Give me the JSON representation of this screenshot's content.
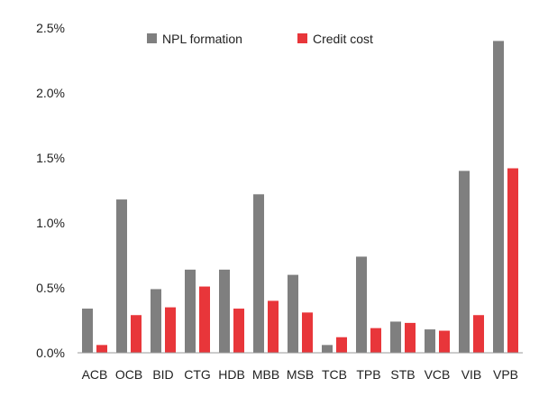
{
  "chart_data": {
    "type": "bar",
    "title": "",
    "xlabel": "",
    "ylabel": "",
    "ylim": [
      0,
      2.5
    ],
    "yticks": [
      0,
      0.5,
      1.0,
      1.5,
      2.0,
      2.5
    ],
    "ytick_labels": [
      "0.0%",
      "0.5%",
      "1.0%",
      "1.5%",
      "2.0%",
      "2.5%"
    ],
    "grid": false,
    "legend_position": "top",
    "categories": [
      "ACB",
      "OCB",
      "BID",
      "CTG",
      "HDB",
      "MBB",
      "MSB",
      "TCB",
      "TPB",
      "STB",
      "VCB",
      "VIB",
      "VPB"
    ],
    "series": [
      {
        "name": "NPL formation",
        "color": "#7f7f7f",
        "values": [
          0.34,
          1.18,
          0.49,
          0.64,
          0.64,
          1.22,
          0.6,
          0.06,
          0.74,
          0.24,
          0.18,
          1.4,
          2.4
        ]
      },
      {
        "name": "Credit cost",
        "color": "#e8363a",
        "values": [
          0.06,
          0.29,
          0.35,
          0.51,
          0.34,
          0.4,
          0.31,
          0.12,
          0.19,
          0.23,
          0.17,
          0.29,
          1.42
        ]
      }
    ]
  }
}
